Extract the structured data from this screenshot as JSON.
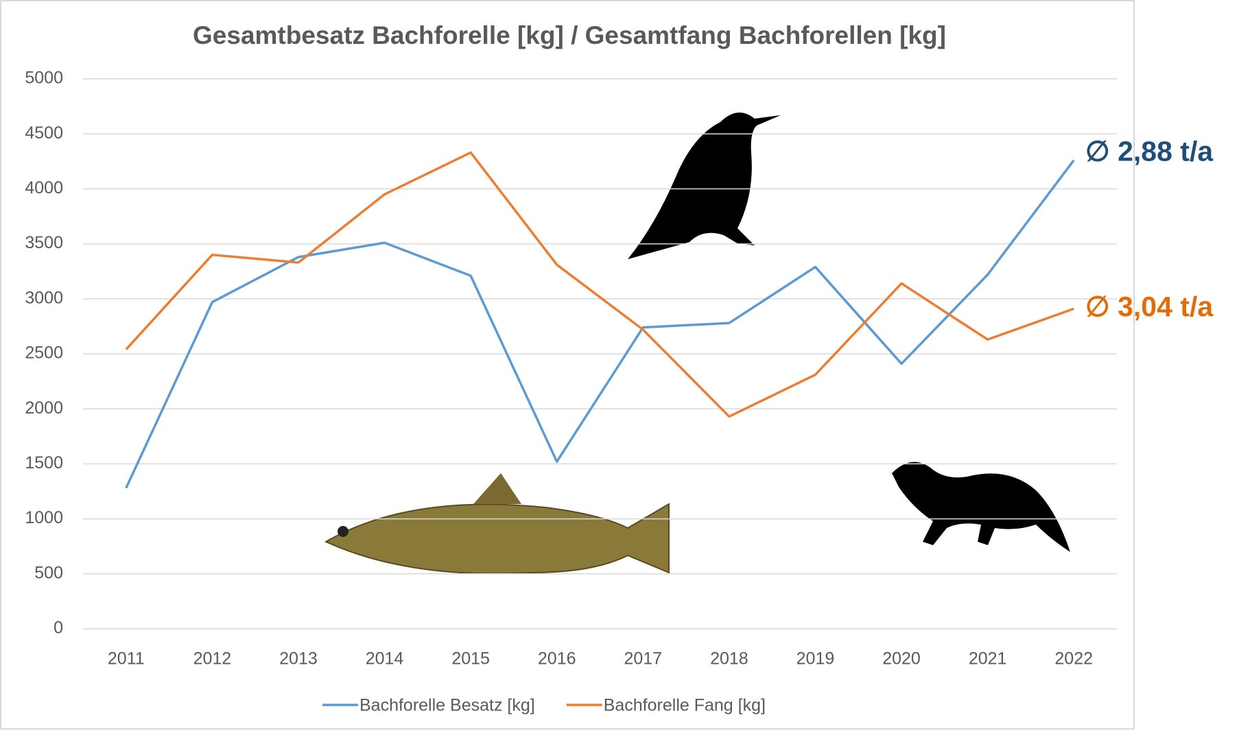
{
  "chart_data": {
    "type": "line",
    "title": "Gesamtbesatz Bachforelle [kg] / Gesamtfang Bachforellen [kg]",
    "categories": [
      "2011",
      "2012",
      "2013",
      "2014",
      "2015",
      "2016",
      "2017",
      "2018",
      "2019",
      "2020",
      "2021",
      "2022"
    ],
    "series": [
      {
        "name": "Bachforelle Besatz [kg]",
        "color": "#5b9bd5",
        "values": [
          1280,
          2970,
          3380,
          3510,
          3210,
          1520,
          2740,
          2780,
          3290,
          2410,
          3220,
          4260
        ]
      },
      {
        "name": "Bachforelle Fang [kg]",
        "color": "#ed7d31",
        "values": [
          2540,
          3400,
          3330,
          3950,
          4330,
          3310,
          2720,
          1930,
          2310,
          3140,
          2630,
          2910
        ]
      }
    ],
    "annotations": [
      {
        "text": "∅ 2,88 t/a",
        "color": "#1f4e79"
      },
      {
        "text": "∅ 3,04 t/a",
        "color": "#e36c0a"
      }
    ],
    "ylim": [
      0,
      5000
    ],
    "yticks": [
      0,
      500,
      1000,
      1500,
      2000,
      2500,
      3000,
      3500,
      4000,
      4500,
      5000
    ],
    "grid": true,
    "legend": "bottom"
  }
}
